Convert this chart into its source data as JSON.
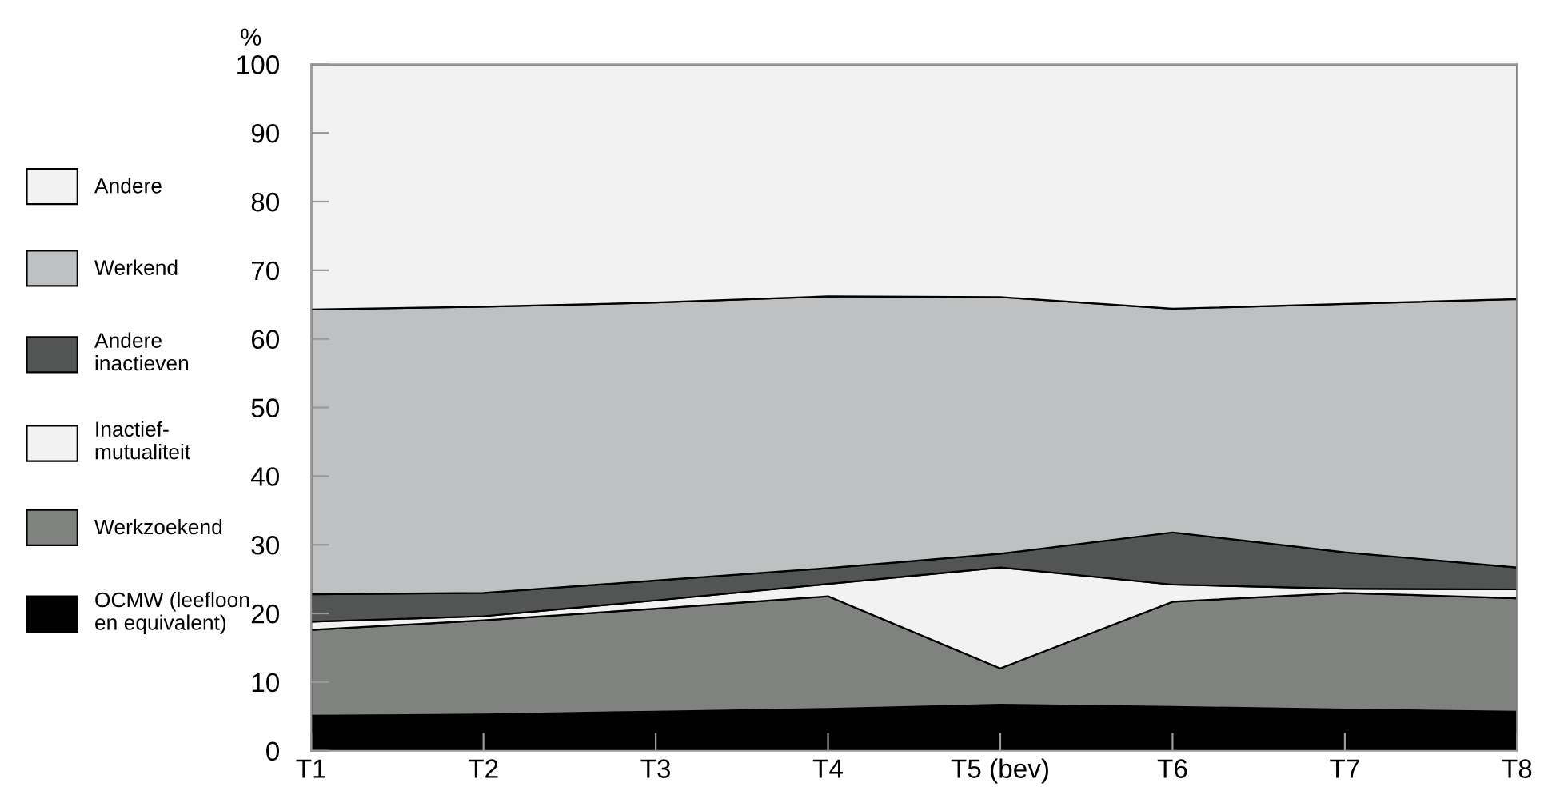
{
  "chart_data": {
    "type": "area",
    "stacked": true,
    "ylabel": "%",
    "categories": [
      "T1",
      "T2",
      "T3",
      "T4",
      "T5 (bev)",
      "T6",
      "T7",
      "T8"
    ],
    "series": [
      {
        "name": "OCMW (leefloon\nen equivalent)",
        "color": "#000000",
        "values": [
          5.1,
          5.3,
          5.7,
          6.1,
          6.7,
          6.4,
          6.0,
          5.7
        ]
      },
      {
        "name": "Werkzoekend",
        "color": "#808280",
        "values": [
          12.5,
          13.7,
          15.0,
          16.4,
          5.3,
          15.3,
          17.0,
          16.5
        ]
      },
      {
        "name": "Inactief-\nmutualiteit",
        "color": "#f2f2f2",
        "values": [
          1.2,
          0.6,
          1.2,
          1.8,
          14.7,
          2.5,
          0.6,
          1.3
        ]
      },
      {
        "name": "Andere\ninactieven",
        "color": "#535554",
        "values": [
          4.0,
          3.4,
          2.9,
          2.3,
          2.0,
          7.6,
          5.3,
          3.2
        ]
      },
      {
        "name": "Werkend",
        "color": "#bfc0c2",
        "values": [
          41.5,
          41.7,
          40.5,
          39.6,
          37.4,
          32.6,
          36.2,
          39.1
        ]
      },
      {
        "name": "Andere",
        "color": "#f2f2f2",
        "values": [
          35.7,
          35.3,
          34.7,
          33.8,
          33.9,
          35.6,
          34.9,
          34.2
        ]
      }
    ],
    "ylim": [
      0,
      100
    ],
    "yticks": [
      0,
      10,
      20,
      30,
      40,
      50,
      60,
      70,
      80,
      90,
      100
    ],
    "grid": false,
    "legend": "left"
  }
}
